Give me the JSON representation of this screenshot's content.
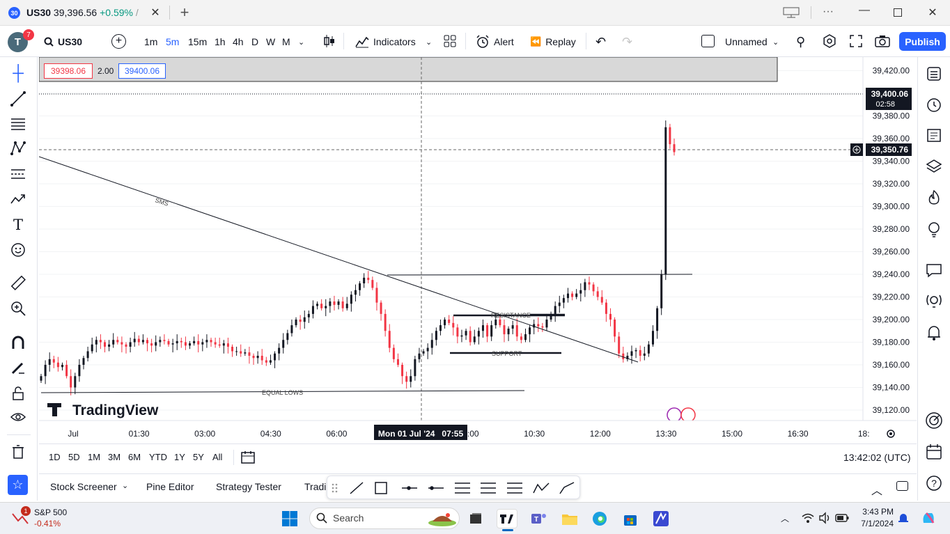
{
  "window": {
    "badge": "30",
    "symbol": "US30",
    "price": "39,396.56",
    "change": "+0.59%",
    "separator": "/"
  },
  "toolbar": {
    "avatar_letter": "T",
    "notifications": "7",
    "symbol": "US30",
    "intervals": [
      "1m",
      "5m",
      "15m",
      "1h",
      "4h",
      "D",
      "W",
      "M"
    ],
    "active_interval": "5m",
    "indicators_label": "Indicators",
    "alert_label": "Alert",
    "replay_label": "Replay",
    "layout_name": "Unnamed",
    "publish_label": "Publish"
  },
  "measure": {
    "low": "39398.06",
    "diff": "2.00",
    "high": "39400.06"
  },
  "chart_data": {
    "type": "candlestick",
    "symbol": "US30",
    "interval": "5m",
    "y_ticks": [
      "39,420.00",
      "39,400.00",
      "39,380.00",
      "39,360.00",
      "39,340.00",
      "39,320.00",
      "39,300.00",
      "39,280.00",
      "39,260.00",
      "39,240.00",
      "39,220.00",
      "39,200.00",
      "39,180.00",
      "39,160.00",
      "39,140.00",
      "39,120.00"
    ],
    "ylim": [
      39110,
      39430
    ],
    "x_ticks": [
      "Jul",
      "01:30",
      "03:00",
      "04:30",
      "06:00",
      "07:30",
      "09:00",
      "10:30",
      "12:00",
      "13:30",
      "15:00",
      "16:30",
      "18:"
    ],
    "last_price_label": "39,400.06",
    "countdown": "02:58",
    "crosshair_price": "39,350.76",
    "crosshair_time": "Mon 01 Jul '24   07:55",
    "annotations": [
      "SMS",
      "RESISTANCE",
      "SUPPORT",
      "EQUAL LOWS"
    ],
    "watermark": "TradingView",
    "closes": [
      39150,
      39160,
      39165,
      39162,
      39158,
      39160,
      39150,
      39140,
      39150,
      39160,
      39166,
      39172,
      39178,
      39182,
      39180,
      39176,
      39178,
      39182,
      39180,
      39178,
      39176,
      39180,
      39183,
      39180,
      39182,
      39179,
      39177,
      39180,
      39182,
      39181,
      39178,
      39179,
      39181,
      39180,
      39177,
      39179,
      39181,
      39178,
      39180,
      39182,
      39180,
      39178,
      39177,
      39179,
      39176,
      39172,
      39172,
      39170,
      39171,
      39168,
      39166,
      39168,
      39164,
      39162,
      39164,
      39170,
      39175,
      39182,
      39188,
      39195,
      39200,
      39198,
      39202,
      39205,
      39212,
      39214,
      39210,
      39212,
      39216,
      39213,
      39216,
      39210,
      39214,
      39222,
      39226,
      39232,
      39237,
      39235,
      39228,
      39215,
      39205,
      39190,
      39175,
      39165,
      39160,
      39150,
      39145,
      39150,
      39165,
      39170,
      39172,
      39175,
      39182,
      39190,
      39195,
      39200,
      39197,
      39193,
      39185,
      39186,
      39190,
      39180,
      39185,
      39190,
      39195,
      39185,
      39195,
      39200,
      39195,
      39187,
      39192,
      39195,
      39185,
      39182,
      39187,
      39193,
      39196,
      39194,
      39193,
      39200,
      39205,
      39212,
      39215,
      39219,
      39223,
      39220,
      39223,
      39226,
      39233,
      39231,
      39225,
      39220,
      39215,
      39205,
      39200,
      39185,
      39170,
      39165,
      39168,
      39172,
      39173,
      39168,
      39170,
      39178,
      39190,
      39210,
      39240,
      39370,
      39355,
      39348
    ]
  },
  "range_bar": {
    "ranges": [
      "1D",
      "5D",
      "1M",
      "3M",
      "6M",
      "YTD",
      "1Y",
      "5Y",
      "All"
    ],
    "clock": "13:42:02 (UTC)"
  },
  "panels": {
    "items": [
      "Stock Screener",
      "Pine Editor",
      "Strategy Tester",
      "Tradi"
    ]
  },
  "taskbar": {
    "ticker_name": "S&P 500",
    "ticker_change": "-0.41%",
    "ticker_badge": "1",
    "search_placeholder": "Search",
    "time": "3:43 PM",
    "date": "7/1/2024"
  },
  "colors": {
    "up": "#089981",
    "down": "#f23645",
    "accent": "#2962ff"
  }
}
